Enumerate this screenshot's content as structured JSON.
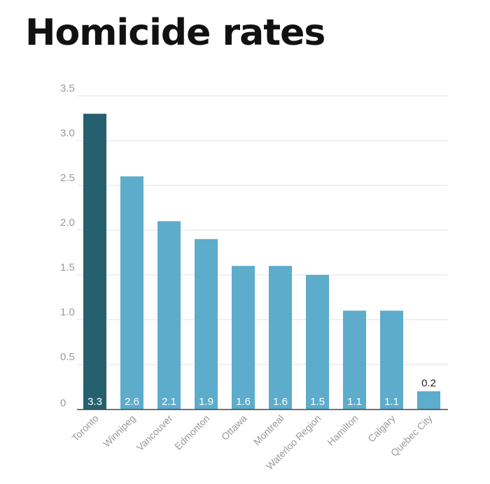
{
  "chart_data": {
    "type": "bar",
    "title": "Homicide rates",
    "xlabel": "",
    "ylabel": "",
    "ylim": [
      0,
      3.5
    ],
    "yticks": [
      0,
      0.5,
      1.0,
      1.5,
      2.0,
      2.5,
      3.0,
      3.5
    ],
    "ytick_labels": [
      "0",
      "0.5",
      "1.0",
      "1.5",
      "2.0",
      "2.5",
      "3.0",
      "3.5"
    ],
    "grid": true,
    "categories": [
      "Toronto",
      "Winnipeg",
      "Vancouver",
      "Edmonton",
      "Ottawa",
      "Montreal",
      "Waterloo Region",
      "Hamilton",
      "Calgary",
      "Quebec City"
    ],
    "values": [
      3.3,
      2.6,
      2.1,
      1.9,
      1.6,
      1.6,
      1.5,
      1.1,
      1.1,
      0.2
    ],
    "value_labels": [
      "3.3",
      "2.6",
      "2.1",
      "1.9",
      "1.6",
      "1.6",
      "1.5",
      "1.1",
      "1.1",
      "0.2"
    ],
    "highlight": "Toronto"
  },
  "colors": {
    "highlight": "#25606f",
    "bar": "#5daccb",
    "grid": "#e2e2e2",
    "axis": "#444444",
    "tick_text": "#9a9a9a",
    "value_text_inside": "#ffffff",
    "value_text_outside": "#222222"
  }
}
